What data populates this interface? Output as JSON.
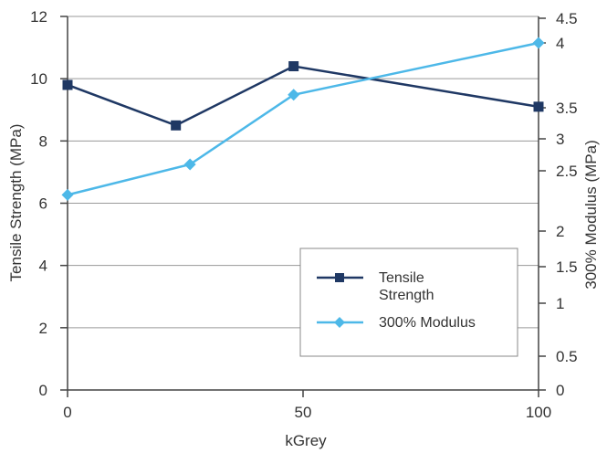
{
  "chart_data": {
    "type": "line",
    "xlabel": "kGrey",
    "ylabel": "Tensile Strength (MPa)",
    "y2label": "300% Modulus (MPa)",
    "xlim": [
      0,
      100
    ],
    "ylim": [
      0,
      12
    ],
    "y2lim": [
      0,
      4.5
    ],
    "x_ticks": [
      "0",
      "50",
      "100"
    ],
    "y_ticks": [
      "0",
      "2",
      "4",
      "6",
      "8",
      "10",
      "12"
    ],
    "y2_ticks": [
      "0",
      "0.5",
      "1",
      "1.5",
      "2",
      "2.5",
      "3",
      "3.5",
      "4",
      "4.5"
    ],
    "grid": "horizontal",
    "legend_position": "bottom-right",
    "series": [
      {
        "name": "Tensile Strength",
        "axis": "left",
        "marker": "square",
        "color": "#1f3864",
        "x": [
          0,
          23,
          48,
          100
        ],
        "y": [
          9.8,
          8.5,
          10.4,
          9.1
        ]
      },
      {
        "name": "300% Modulus",
        "axis": "right",
        "marker": "diamond",
        "color": "#4db8e8",
        "x": [
          0,
          26,
          48,
          100
        ],
        "y": [
          2.3,
          2.6,
          3.6,
          4.0
        ]
      }
    ],
    "legend": {
      "tensile_line1": "Tensile",
      "tensile_line2": "Strength",
      "modulus": "300% Modulus"
    }
  }
}
